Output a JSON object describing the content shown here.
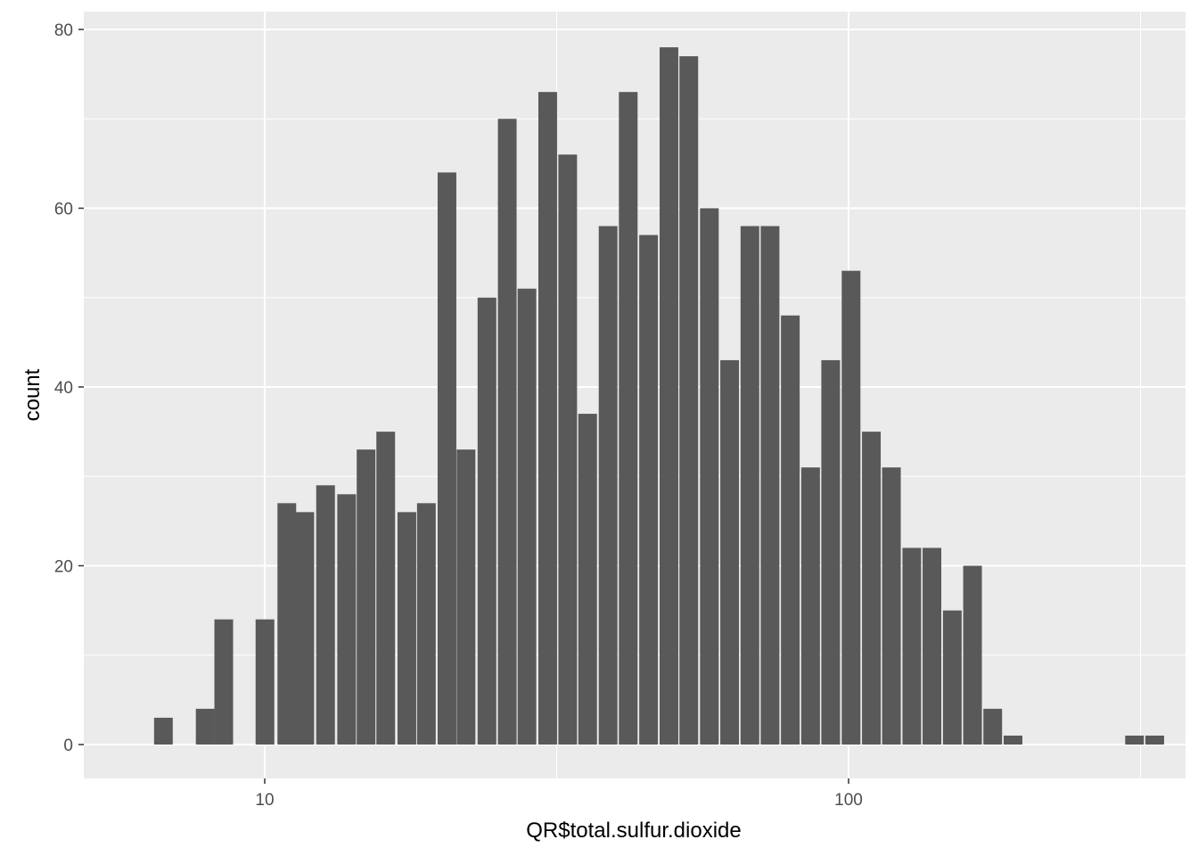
{
  "chart_data": {
    "type": "bar",
    "title": "",
    "xlabel": "QR$total.sulfur.dioxide",
    "ylabel": "count",
    "x_scale": "log10",
    "x_ticks": [
      10,
      100
    ],
    "x_tick_labels": [
      "10",
      "100"
    ],
    "y_ticks": [
      0,
      20,
      40,
      60,
      80
    ],
    "y_tick_labels": [
      "0",
      "20",
      "40",
      "60",
      "80"
    ],
    "ylim": [
      0,
      80
    ],
    "xlim": [
      6.2,
      400
    ],
    "grid": true,
    "bar_color": "#595959",
    "panel_color": "#ebebeb",
    "grid_color": "#ffffff",
    "bins_x": [
      6.7,
      7.2,
      7.9,
      8.5,
      9.3,
      10.0,
      10.9,
      11.7,
      12.7,
      13.8,
      14.9,
      16.1,
      17.5,
      18.9,
      20.5,
      22.1,
      24.0,
      26.0,
      28.1,
      30.5,
      33.0,
      35.7,
      38.7,
      41.9,
      45.4,
      49.2,
      53.2,
      57.7,
      62.5,
      67.7,
      73.3,
      79.4,
      86.0,
      93.1,
      100.9,
      109.3,
      118.3,
      128.2,
      138.8,
      150.4,
      162.9,
      176.4,
      191.1,
      207.0,
      224.2,
      242.8,
      263.0,
      284.9,
      308.6,
      334.2
    ],
    "values": [
      3,
      0,
      4,
      14,
      0,
      14,
      27,
      26,
      29,
      28,
      33,
      35,
      26,
      27,
      64,
      33,
      50,
      70,
      51,
      73,
      66,
      37,
      58,
      73,
      57,
      78,
      77,
      60,
      43,
      58,
      58,
      48,
      31,
      43,
      53,
      35,
      31,
      22,
      22,
      15,
      20,
      4,
      1,
      0,
      0,
      0,
      0,
      0,
      1,
      1
    ]
  }
}
